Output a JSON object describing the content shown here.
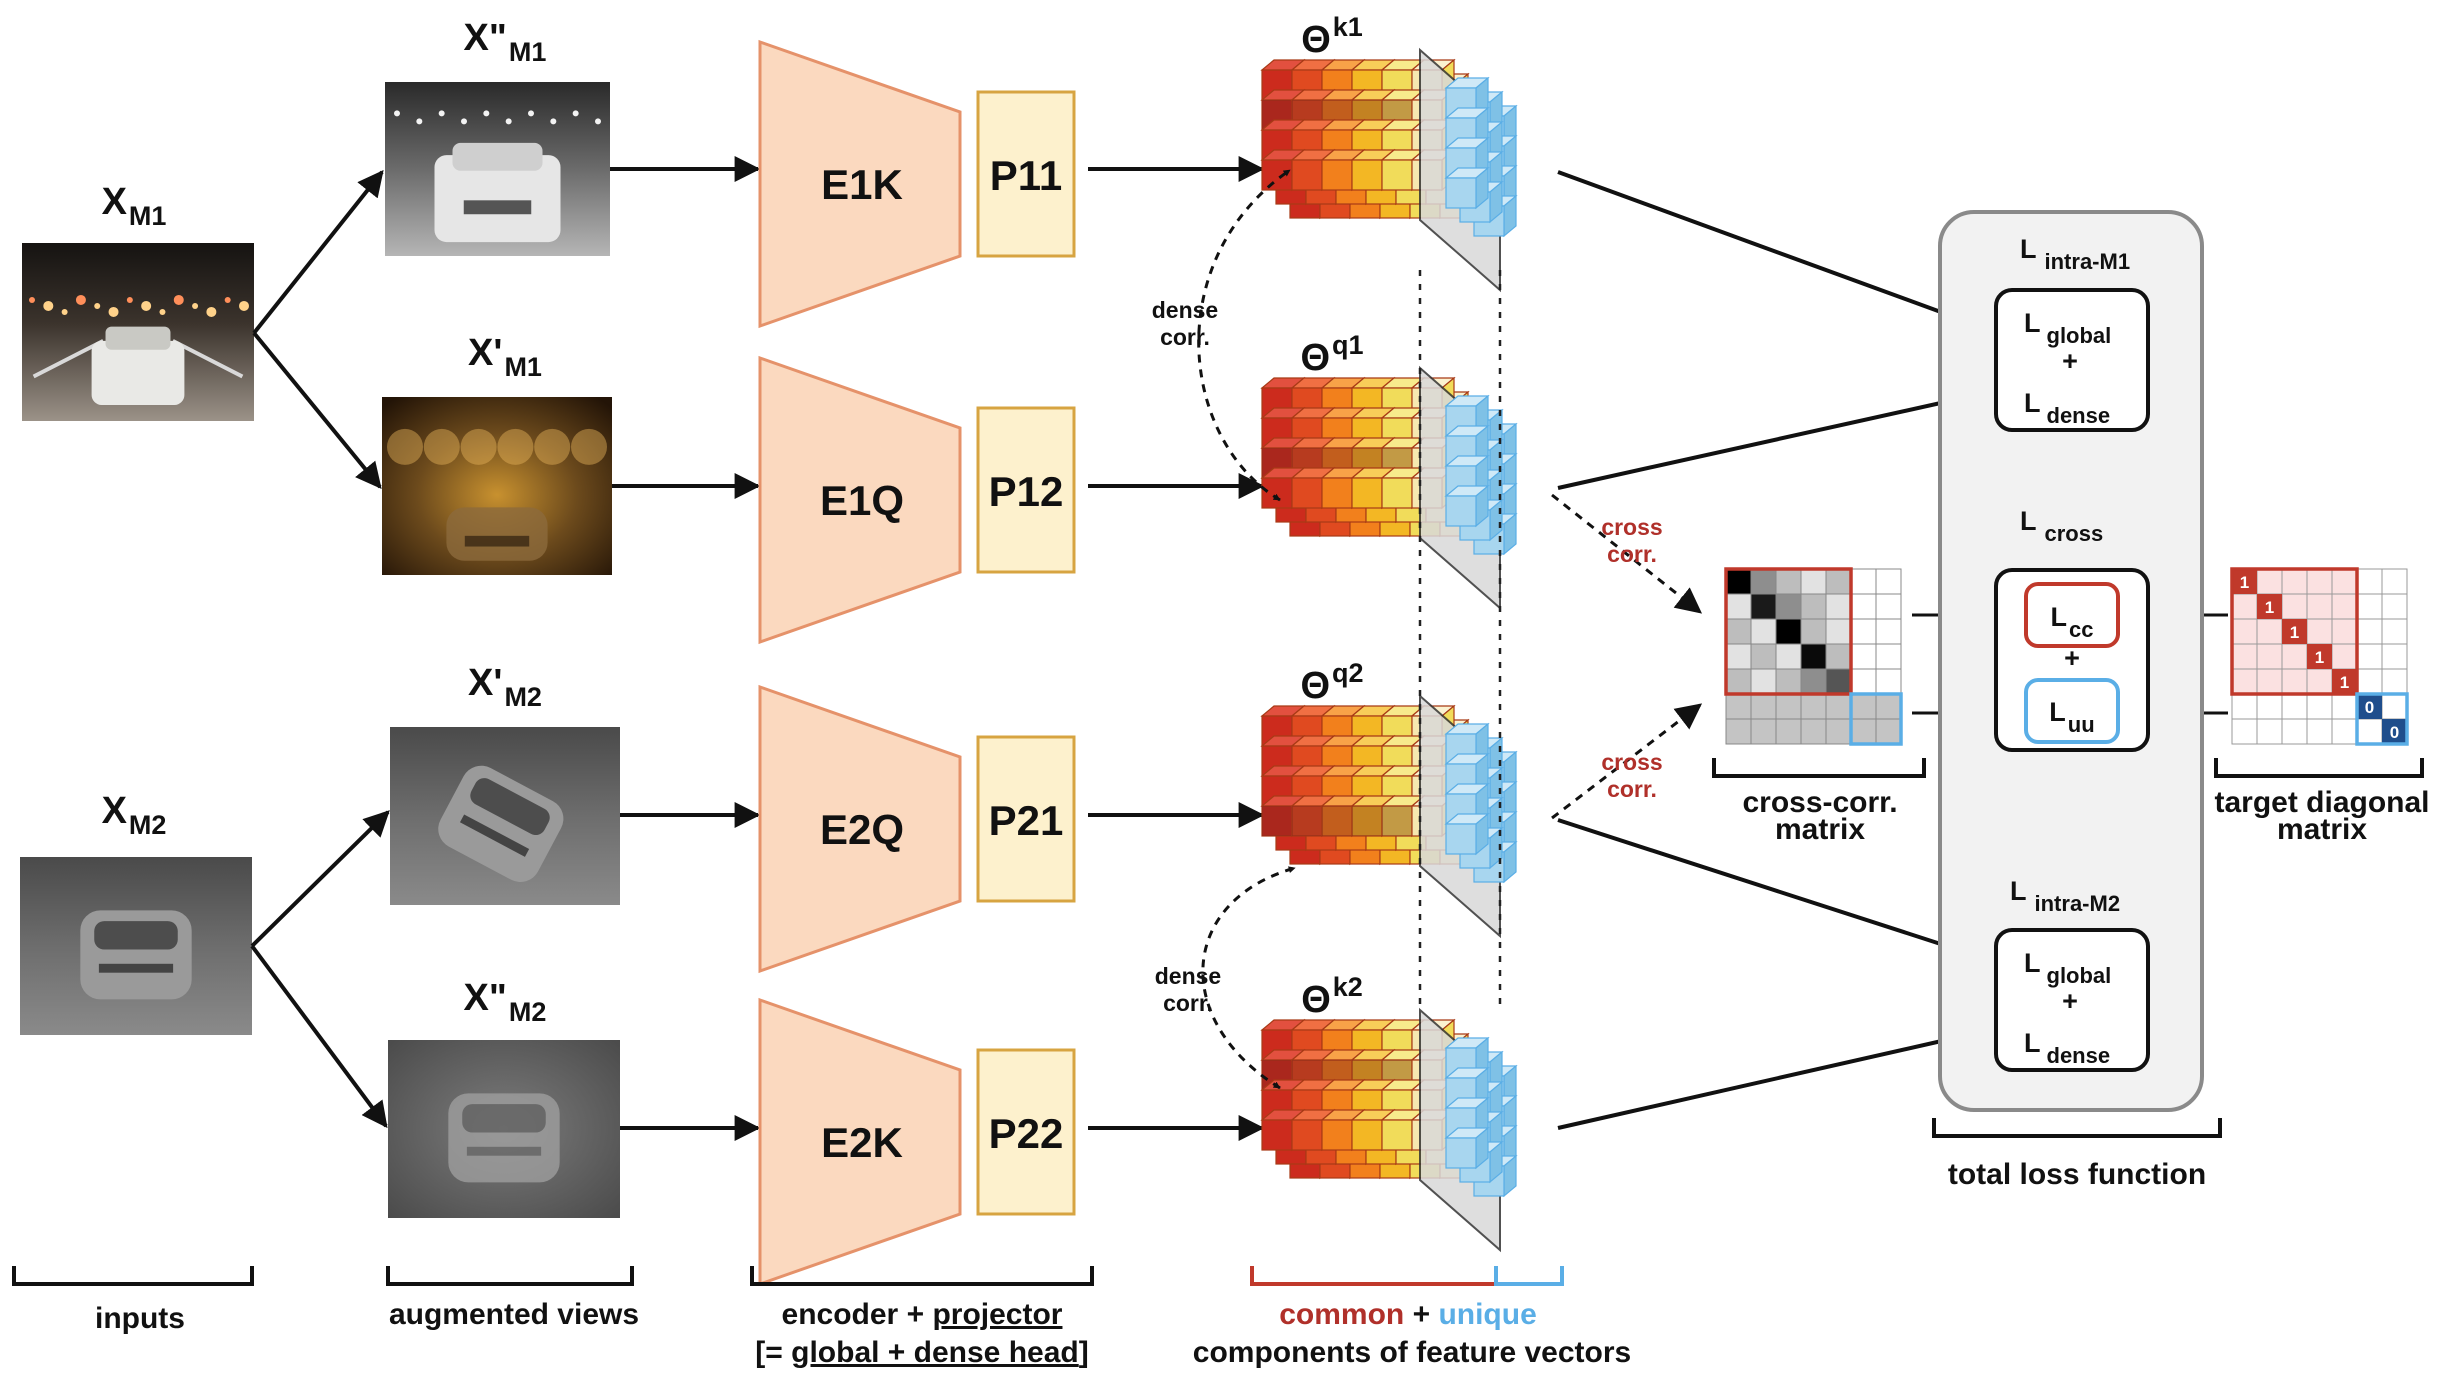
{
  "colors": {
    "encoder_fill": "#fbd9bf",
    "encoder_stroke": "#e5926a",
    "projector_fill": "#fdf1cd",
    "projector_stroke": "#d7a441",
    "common_red": "#c0392b",
    "unique_blue": "#5aaee6",
    "loss_panel": "#f2f2f2"
  },
  "inputs": {
    "m1": {
      "base": "X",
      "sub": "M1"
    },
    "m2": {
      "base": "X",
      "sub": "M2"
    }
  },
  "views": [
    {
      "base": "X\"",
      "sub": "M1"
    },
    {
      "base": "X'",
      "sub": "M1"
    },
    {
      "base": "X'",
      "sub": "M2"
    },
    {
      "base": "X\"",
      "sub": "M2"
    }
  ],
  "encoders": [
    "E1K",
    "E1Q",
    "E2Q",
    "E2K"
  ],
  "projectors": [
    "P11",
    "P12",
    "P21",
    "P22"
  ],
  "features": [
    {
      "base": "Θ",
      "sup": "k1"
    },
    {
      "base": "Θ",
      "sup": "q1"
    },
    {
      "base": "Θ",
      "sup": "q2"
    },
    {
      "base": "Θ",
      "sup": "k2"
    }
  ],
  "corr_labels": {
    "dense_line1": "dense",
    "dense_line2": "corr.",
    "cross_line1": "cross",
    "cross_line2": "corr."
  },
  "losses": {
    "intra_m1": {
      "base": "L",
      "sub": "intra-M1"
    },
    "intra_m2": {
      "base": "L",
      "sub": "intra-M2"
    },
    "cross": {
      "base": "L",
      "sub": "cross"
    },
    "global": {
      "base": "L",
      "sub": "global"
    },
    "dense": {
      "base": "L",
      "sub": "dense"
    },
    "cc": {
      "base": "L",
      "sub": "cc"
    },
    "uu": {
      "base": "L",
      "sub": "uu"
    },
    "plus": "+"
  },
  "matrix_labels": {
    "cross_corr_line1": "cross-corr.",
    "cross_corr_line2": "matrix",
    "target_line1": "target diagonal",
    "target_line2": "matrix",
    "diag_one": "1",
    "diag_zero": "0"
  },
  "bottom_labels": {
    "inputs": "inputs",
    "augmented": "augmented views",
    "encoder_prefix": "encoder + ",
    "projector_word": "projector",
    "head_bracket_open": "[= ",
    "head_text": "global + dense head",
    "head_bracket_close": "]",
    "common": "common",
    "plus": " + ",
    "unique": "unique",
    "components": "components of feature vectors",
    "total_loss": "total loss function"
  }
}
